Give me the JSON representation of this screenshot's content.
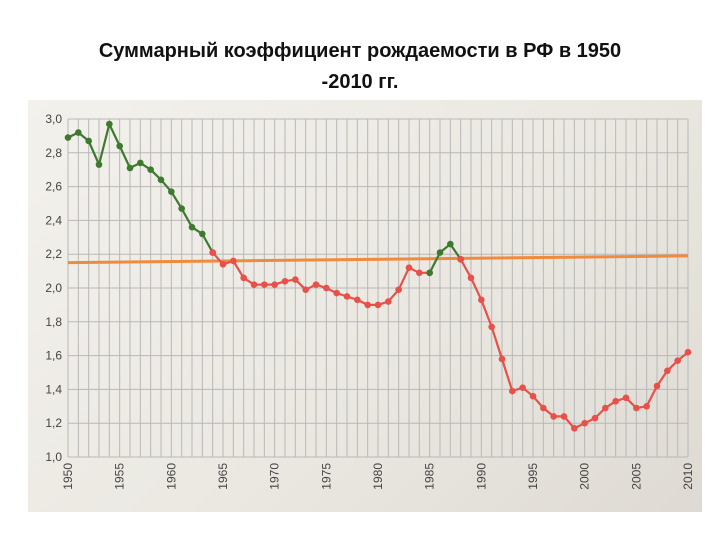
{
  "title": {
    "line1": "Суммарный коэффициент рождаемости в РФ в 1950",
    "line2": "-2010 гг."
  },
  "chart_data": {
    "type": "line",
    "title": "Суммарный коэффициент рождаемости в РФ в 1950 -2010 гг.",
    "xlabel": "",
    "ylabel": "",
    "xlim": [
      1950,
      2010
    ],
    "ylim": [
      1.0,
      3.0
    ],
    "grid": true,
    "y_ticks": [
      "1,0",
      "1,2",
      "1,4",
      "1,6",
      "1,8",
      "2,0",
      "2,2",
      "2,4",
      "2,6",
      "2,8",
      "3,0"
    ],
    "x_ticks": [
      "1950",
      "1955",
      "1960",
      "1965",
      "1970",
      "1975",
      "1980",
      "1985",
      "1990",
      "1995",
      "2000",
      "2005",
      "2010"
    ],
    "colors": {
      "above": "#3d7a2e",
      "below": "#e8504a",
      "reference": "#f08a3c",
      "grid": "#b8b8b8"
    },
    "reference_line": {
      "y_start": 2.15,
      "y_end": 2.19
    },
    "series": [
      {
        "color": "#3d7a2e",
        "x": [
          1950,
          1951,
          1952,
          1953,
          1954,
          1955,
          1956,
          1957,
          1958,
          1959,
          1960,
          1961,
          1962,
          1963,
          1964
        ],
        "y": [
          2.89,
          2.92,
          2.87,
          2.73,
          2.97,
          2.84,
          2.71,
          2.74,
          2.7,
          2.64,
          2.57,
          2.47,
          2.36,
          2.32,
          2.21
        ]
      },
      {
        "color": "#e8504a",
        "x": [
          1964,
          1965,
          1966,
          1967,
          1968,
          1969,
          1970,
          1971,
          1972,
          1973,
          1974,
          1975,
          1976,
          1977,
          1978,
          1979,
          1980,
          1981,
          1982,
          1983,
          1984,
          1985
        ],
        "y": [
          2.21,
          2.14,
          2.16,
          2.06,
          2.02,
          2.02,
          2.02,
          2.04,
          2.05,
          1.99,
          2.02,
          2.0,
          1.97,
          1.95,
          1.93,
          1.9,
          1.9,
          1.92,
          1.99,
          2.12,
          2.09,
          2.09
        ]
      },
      {
        "color": "#3d7a2e",
        "x": [
          1985,
          1986,
          1987,
          1988
        ],
        "y": [
          2.09,
          2.21,
          2.26,
          2.17
        ]
      },
      {
        "color": "#e8504a",
        "x": [
          1988,
          1989,
          1990,
          1991,
          1992,
          1993,
          1994,
          1995,
          1996,
          1997,
          1998,
          1999,
          2000,
          2001,
          2002,
          2003,
          2004,
          2005,
          2006,
          2007,
          2008,
          2009,
          2010
        ],
        "y": [
          2.17,
          2.06,
          1.93,
          1.77,
          1.58,
          1.39,
          1.41,
          1.36,
          1.29,
          1.24,
          1.24,
          1.17,
          1.2,
          1.23,
          1.29,
          1.33,
          1.35,
          1.29,
          1.3,
          1.42,
          1.51,
          1.57,
          1.62
        ]
      }
    ]
  }
}
